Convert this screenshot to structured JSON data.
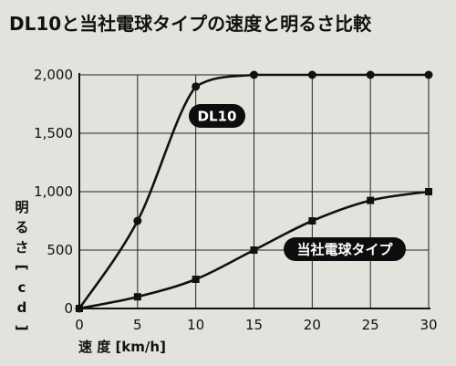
{
  "chart_data": {
    "type": "line",
    "title": "DL10と当社電球タイプの速度と明るさ比較",
    "xlabel": "速 度 [km/h]",
    "ylabel": "明るさ[cd]",
    "x_ticks": [
      "0",
      "5",
      "10",
      "15",
      "20",
      "25",
      "30"
    ],
    "y_ticks": [
      "0",
      "500",
      "1,000",
      "1,500",
      "2,000"
    ],
    "xlim": [
      0,
      30
    ],
    "ylim": [
      0,
      2000
    ],
    "grid": true,
    "legend": "inline labels",
    "series": [
      {
        "name": "DL10",
        "marker": "circle",
        "x": [
          0,
          5,
          10,
          15,
          20,
          25,
          30
        ],
        "y": [
          0,
          750,
          1900,
          2000,
          2000,
          2000,
          2000
        ]
      },
      {
        "name": "当社電球タイプ",
        "marker": "square",
        "x": [
          0,
          5,
          10,
          15,
          20,
          25,
          30
        ],
        "y": [
          0,
          100,
          250,
          500,
          750,
          925,
          1000
        ]
      }
    ],
    "colors": {
      "line": "#111111",
      "grid": "#222222",
      "label_bg": "#0d0d0d",
      "label_text": "#ffffff",
      "background": "#e3e2dd"
    }
  }
}
